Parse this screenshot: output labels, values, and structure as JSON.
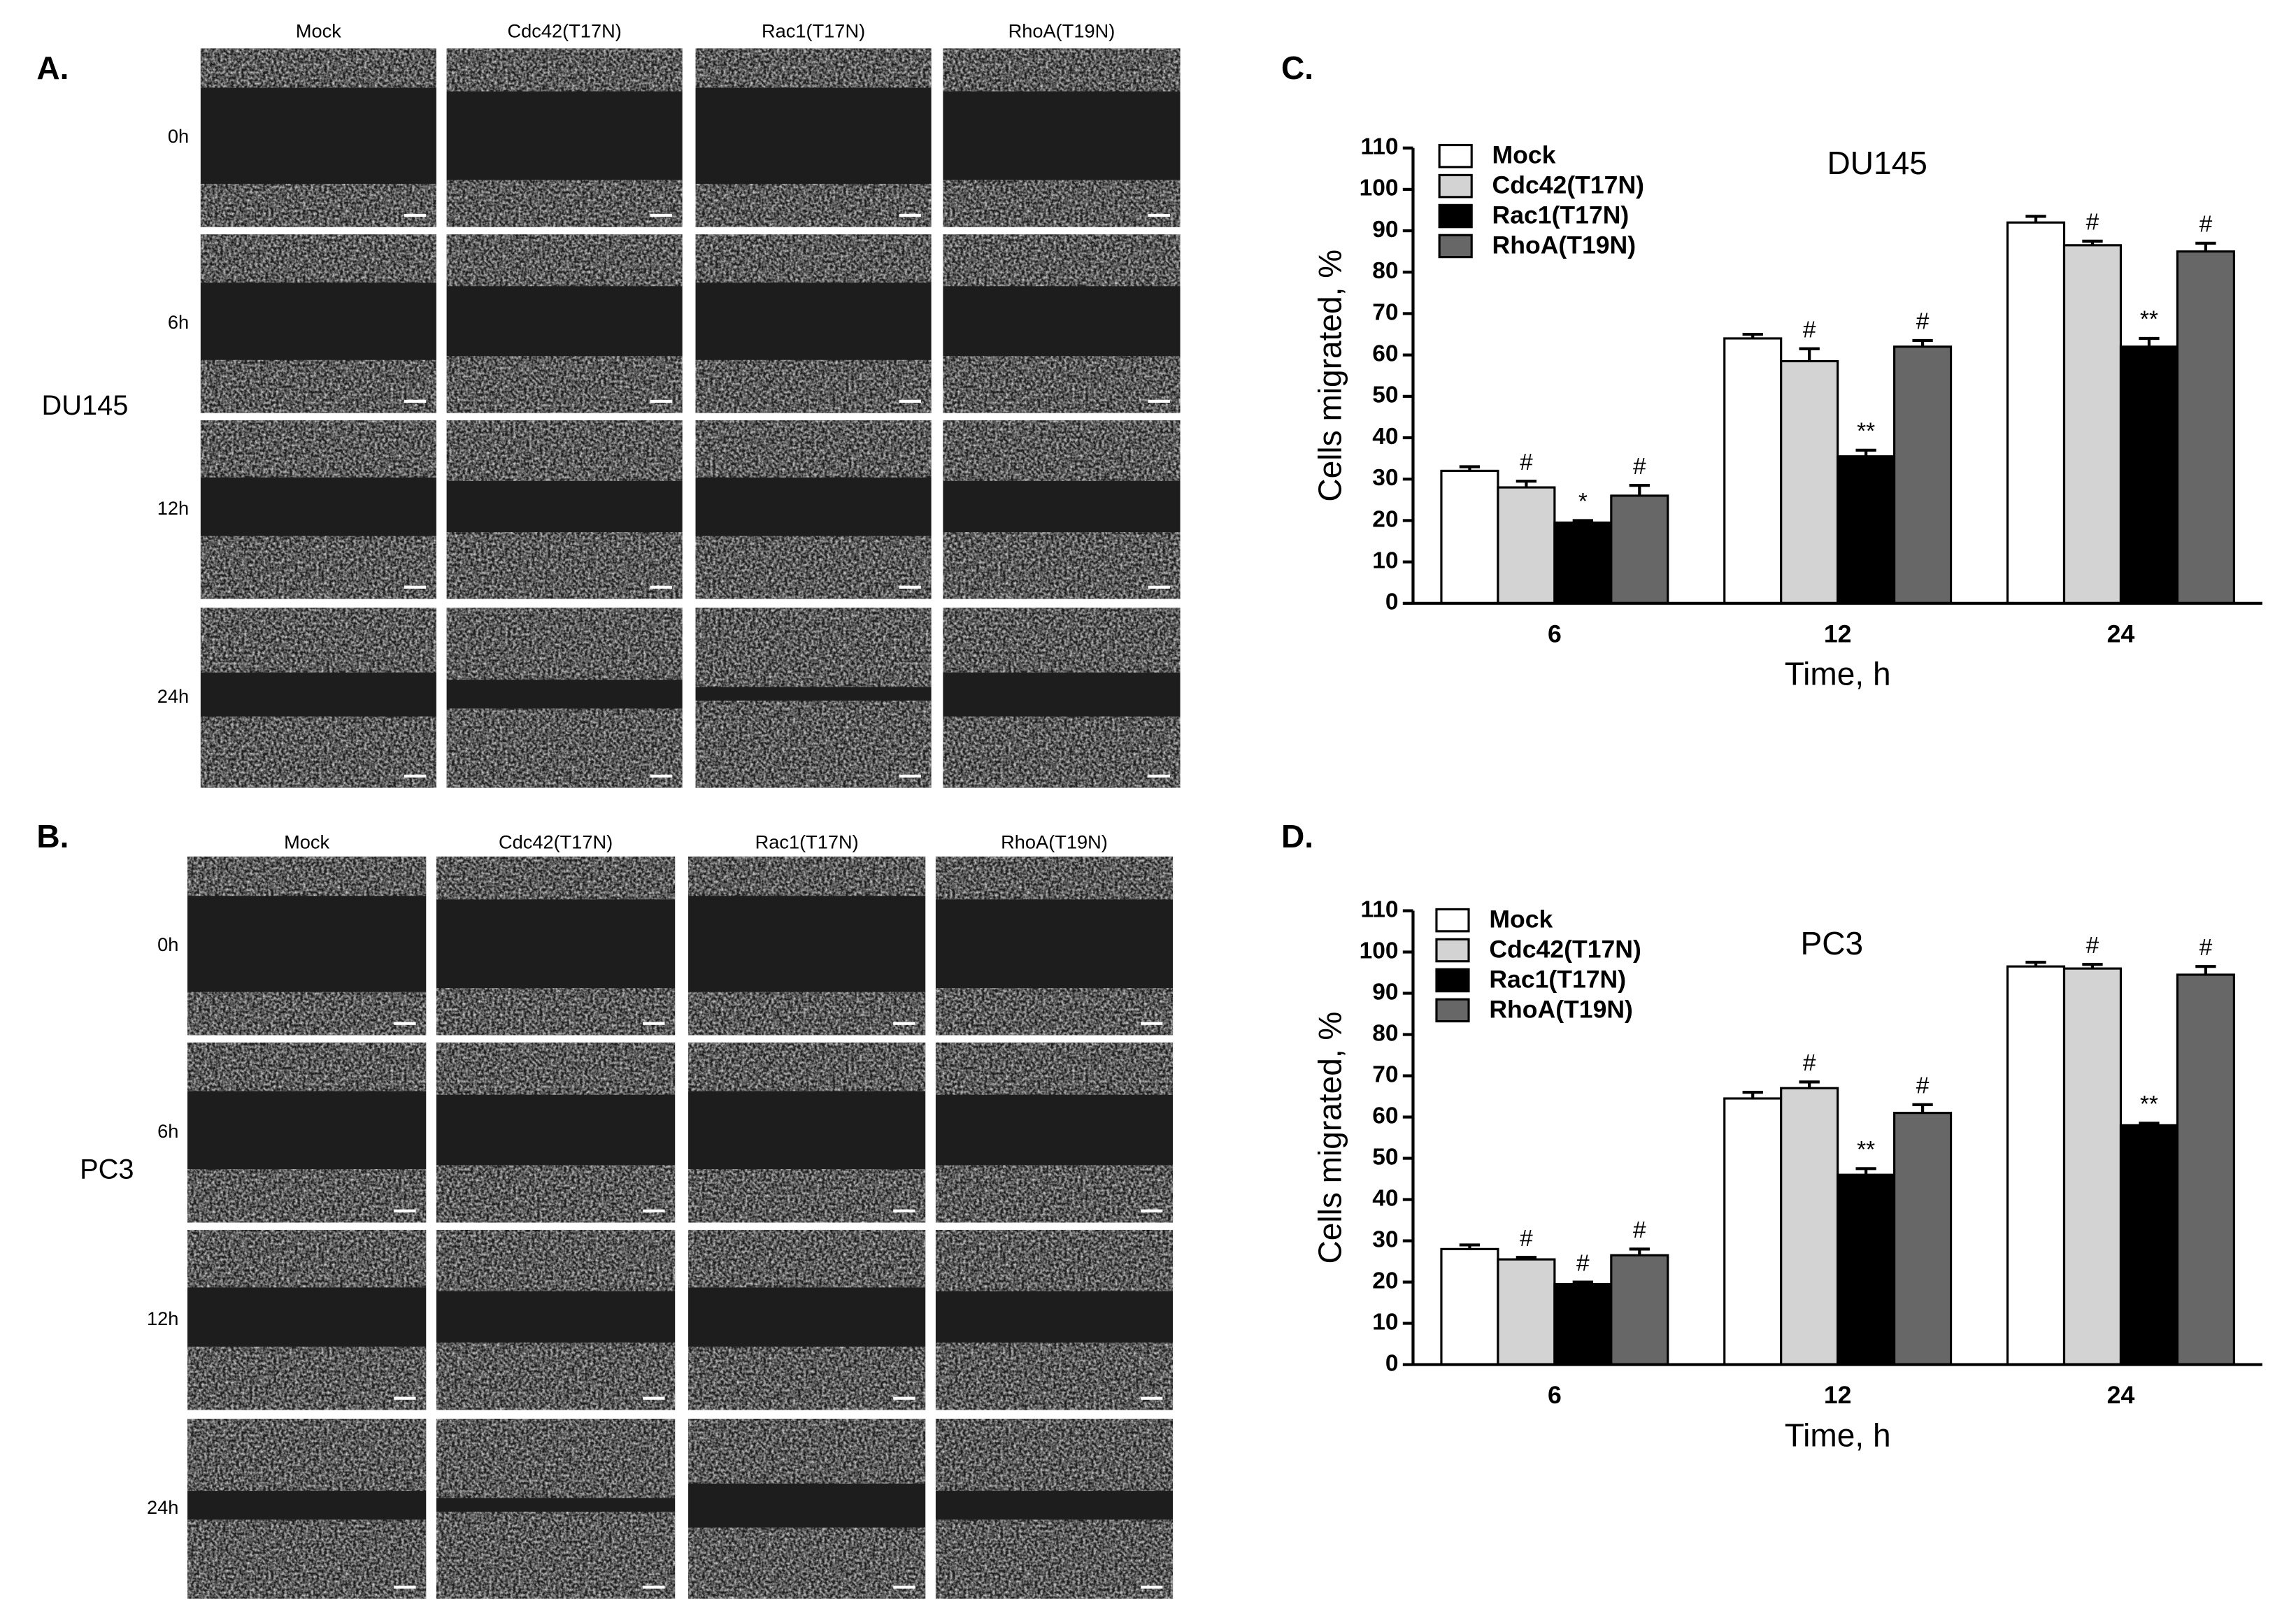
{
  "panels": [
    {
      "label": "A.",
      "cell_line": "DU145",
      "columns": [
        "Mock",
        "Cdc42(T17N)",
        "Rac1(T17N)",
        "RhoA(T19N)"
      ],
      "rows": [
        "0h",
        "6h",
        "12h",
        "24h"
      ]
    },
    {
      "label": "B.",
      "cell_line": "PC3",
      "columns": [
        "Mock",
        "Cdc42(T17N)",
        "Rac1(T17N)",
        "RhoA(T19N)"
      ],
      "rows": [
        "0h",
        "6h",
        "12h",
        "24h"
      ]
    }
  ],
  "chart_data": [
    {
      "type": "bar",
      "panel_label": "C.",
      "title": "DU145",
      "x_label": "Time, h",
      "y_label": "Cells migrated, %",
      "categories": [
        "6",
        "12",
        "24"
      ],
      "ylim": [
        0,
        110
      ],
      "yticks": [
        0,
        10,
        20,
        30,
        40,
        50,
        60,
        70,
        80,
        90,
        100,
        110
      ],
      "series": [
        {
          "name": "Mock",
          "color": "#ffffff",
          "values": [
            32,
            64,
            92
          ],
          "errors": [
            1,
            1,
            1.5
          ],
          "annotations": [
            null,
            null,
            null
          ]
        },
        {
          "name": "Cdc42(T17N)",
          "color": "#d3d3d3",
          "values": [
            28,
            58.5,
            86.5
          ],
          "errors": [
            1.5,
            3,
            1
          ],
          "annotations": [
            "#",
            "#",
            "#"
          ]
        },
        {
          "name": "Rac1(T17N)",
          "color": "#000000",
          "values": [
            19.5,
            35.5,
            62
          ],
          "errors": [
            0.5,
            1.5,
            2
          ],
          "annotations": [
            "*",
            "**",
            "**"
          ]
        },
        {
          "name": "RhoA(T19N)",
          "color": "#676767",
          "values": [
            26,
            62,
            85
          ],
          "errors": [
            2.5,
            1.5,
            2
          ],
          "annotations": [
            "#",
            "#",
            "#"
          ]
        }
      ]
    },
    {
      "type": "bar",
      "panel_label": "D.",
      "title": "PC3",
      "x_label": "Time, h",
      "y_label": "Cells migrated, %",
      "categories": [
        "6",
        "12",
        "24"
      ],
      "ylim": [
        0,
        110
      ],
      "yticks": [
        0,
        10,
        20,
        30,
        40,
        50,
        60,
        70,
        80,
        90,
        100,
        110
      ],
      "series": [
        {
          "name": "Mock",
          "color": "#ffffff",
          "values": [
            28,
            64.5,
            96.5
          ],
          "errors": [
            1,
            1.5,
            1
          ],
          "annotations": [
            null,
            null,
            null
          ]
        },
        {
          "name": "Cdc42(T17N)",
          "color": "#d3d3d3",
          "values": [
            25.5,
            67,
            96
          ],
          "errors": [
            0.5,
            1.5,
            1
          ],
          "annotations": [
            "#",
            "#",
            "#"
          ]
        },
        {
          "name": "Rac1(T17N)",
          "color": "#000000",
          "values": [
            19.5,
            46,
            58
          ],
          "errors": [
            0.5,
            1.5,
            0.5
          ],
          "annotations": [
            "#",
            "**",
            "**"
          ]
        },
        {
          "name": "RhoA(T19N)",
          "color": "#676767",
          "values": [
            26.5,
            61,
            94.5
          ],
          "errors": [
            1.5,
            2,
            2
          ],
          "annotations": [
            "#",
            "#",
            "#"
          ]
        }
      ]
    }
  ]
}
